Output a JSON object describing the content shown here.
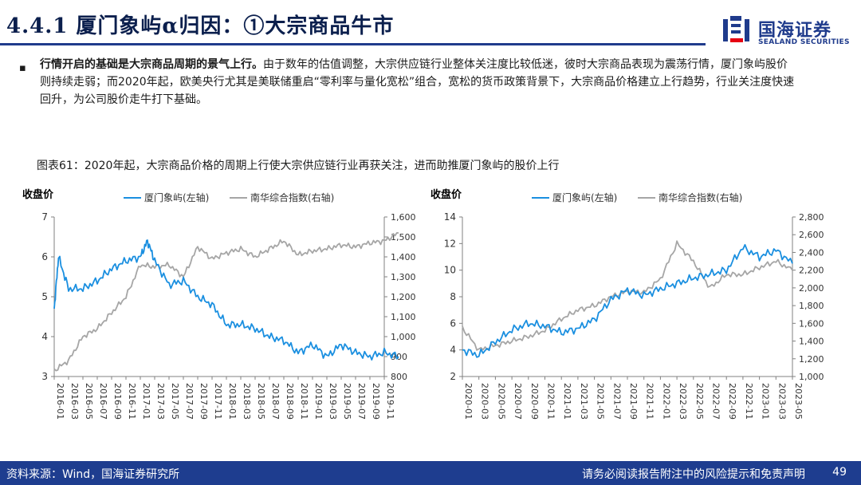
{
  "header": {
    "title": "4.4.1 厦门象屿α归因：①大宗商品牛市",
    "logo_cn": "国海证券",
    "logo_en": "SEALAND SECURITIES"
  },
  "body": {
    "bullet": "▪",
    "para_bold": "行情开启的基础是大宗商品周期的景气上行。",
    "para_rest": "由于数年的估值调整，大宗供应链行业整体关注度比较低迷，彼时大宗商品表现为震荡行情，厦门象屿股价则持续走弱；而2020年起，欧美央行尤其是美联储重启“零利率与量化宽松”组合，宽松的货币政策背景下，大宗商品价格建立上行趋势，行业关注度快速回升，为公司股价走牛打下基础。"
  },
  "figure": {
    "caption": "图表61：2020年起，大宗商品价格的周期上行使大宗供应链行业再获关注，进而助推厦门象屿的股价上行"
  },
  "colors": {
    "primary": "#1f3b8c",
    "series_left": "#1a8fe0",
    "series_right": "#a6a6a6",
    "footer": "#1e3d8f"
  },
  "chart_data": [
    {
      "type": "line",
      "title": "",
      "ylabel": "收盘价",
      "legend": [
        "厦门象屿(左轴)",
        "南华综合指数(右轴)"
      ],
      "ylim_left": [
        3,
        7
      ],
      "yticks_left": [
        "3",
        "4",
        "5",
        "6",
        "7"
      ],
      "ylim_right": [
        800,
        1600
      ],
      "yticks_right": [
        "800",
        "900",
        "1,000",
        "1,100",
        "1,200",
        "1,300",
        "1,400",
        "1,500",
        "1,600"
      ],
      "xticks": [
        "2016-01",
        "2016-03",
        "2016-05",
        "2016-07",
        "2016-09",
        "2016-11",
        "2017-01",
        "2017-03",
        "2017-05",
        "2017-07",
        "2017-09",
        "2017-11",
        "2018-01",
        "2018-03",
        "2018-05",
        "2018-07",
        "2018-09",
        "2018-11",
        "2019-01",
        "2019-03",
        "2019-05",
        "2019-07",
        "2019-09",
        "2019-11"
      ],
      "series": [
        {
          "name": "厦门象屿(左轴)",
          "axis": "left",
          "x": [
            0,
            0.3,
            1,
            2,
            3,
            4,
            5,
            6,
            6.5,
            7,
            8,
            9,
            10,
            11,
            12,
            13,
            14,
            15,
            16,
            17,
            18,
            19,
            20,
            21,
            22,
            23,
            24
          ],
          "values": [
            4.7,
            6.0,
            5.2,
            5.2,
            5.4,
            5.7,
            5.9,
            6.0,
            6.4,
            5.9,
            5.3,
            5.4,
            5.0,
            4.8,
            4.3,
            4.3,
            4.2,
            4.0,
            3.9,
            3.6,
            3.8,
            3.5,
            3.8,
            3.6,
            3.5,
            3.6,
            3.5
          ]
        },
        {
          "name": "南华综合指数(右轴)",
          "axis": "right",
          "x": [
            0,
            1,
            2,
            3,
            4,
            5,
            6,
            7,
            8,
            9,
            10,
            11,
            12,
            13,
            14,
            15,
            16,
            17,
            18,
            19,
            20,
            21,
            22,
            23,
            24
          ],
          "values": [
            830,
            880,
            1000,
            1040,
            1120,
            1200,
            1360,
            1350,
            1360,
            1300,
            1450,
            1390,
            1420,
            1440,
            1400,
            1440,
            1480,
            1410,
            1430,
            1440,
            1460,
            1450,
            1470,
            1480,
            1520
          ]
        }
      ]
    },
    {
      "type": "line",
      "title": "",
      "ylabel": "收盘价",
      "legend": [
        "厦门象屿(左轴)",
        "南华综合指数(右轴)"
      ],
      "ylim_left": [
        2,
        14
      ],
      "yticks_left": [
        "2",
        "4",
        "6",
        "8",
        "10",
        "12",
        "14"
      ],
      "ylim_right": [
        1000,
        2800
      ],
      "yticks_right": [
        "1,000",
        "1,200",
        "1,400",
        "1,600",
        "1,800",
        "2,000",
        "2,200",
        "2,400",
        "2,600",
        "2,800"
      ],
      "xticks": [
        "2020-01",
        "2020-03",
        "2020-05",
        "2020-07",
        "2020-09",
        "2020-11",
        "2021-01",
        "2021-03",
        "2021-05",
        "2021-07",
        "2021-09",
        "2021-11",
        "2022-01",
        "2022-03",
        "2022-05",
        "2022-07",
        "2022-09",
        "2022-11",
        "2023-01",
        "2023-03",
        "2023-05"
      ],
      "series": [
        {
          "name": "厦门象屿(左轴)",
          "axis": "left",
          "x": [
            0,
            1,
            2,
            3,
            4,
            5,
            6,
            7,
            8,
            9,
            10,
            11,
            12,
            13,
            14,
            15,
            16,
            17,
            18,
            19,
            20
          ],
          "values": [
            4.0,
            3.6,
            4.6,
            5.5,
            6.0,
            5.8,
            5.3,
            5.6,
            6.3,
            7.8,
            8.5,
            8.1,
            8.6,
            9.0,
            9.4,
            9.7,
            10.0,
            11.7,
            11.0,
            11.5,
            10.5
          ]
        },
        {
          "name": "南华综合指数(右轴)",
          "axis": "right",
          "x": [
            0,
            1,
            2,
            3,
            4,
            5,
            6,
            7,
            8,
            9,
            10,
            11,
            12,
            13,
            14,
            15,
            16,
            17,
            18,
            19,
            20
          ],
          "values": [
            1550,
            1300,
            1350,
            1400,
            1450,
            1520,
            1650,
            1750,
            1800,
            1900,
            1960,
            1950,
            2100,
            2500,
            2300,
            2000,
            2150,
            2150,
            2230,
            2300,
            2200
          ]
        }
      ]
    }
  ],
  "footer": {
    "source": "资料来源：Wind，国海证券研究所",
    "disclaimer": "请务必阅读报告附注中的风险提示和免责声明",
    "page": "49"
  }
}
